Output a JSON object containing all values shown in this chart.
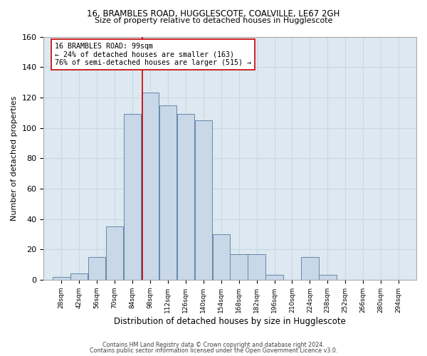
{
  "title1": "16, BRAMBLES ROAD, HUGGLESCOTE, COALVILLE, LE67 2GH",
  "title2": "Size of property relative to detached houses in Hugglescote",
  "xlabel": "Distribution of detached houses by size in Hugglescote",
  "ylabel": "Number of detached properties",
  "bin_edges": [
    28,
    42,
    56,
    70,
    84,
    98,
    112,
    126,
    140,
    154,
    168,
    182,
    196,
    210,
    224,
    238,
    252,
    266,
    280,
    294,
    308
  ],
  "bar_heights": [
    2,
    4,
    15,
    35,
    109,
    123,
    115,
    109,
    105,
    30,
    17,
    17,
    3,
    0,
    15,
    3,
    0,
    0,
    0,
    0
  ],
  "bar_color": "#c8d8e8",
  "bar_edge_color": "#6688aa",
  "vline_x": 99,
  "vline_color": "#cc0000",
  "annotation_line1": "16 BRAMBLES ROAD: 99sqm",
  "annotation_line2": "← 24% of detached houses are smaller (163)",
  "annotation_line3": "76% of semi-detached houses are larger (515) →",
  "annotation_box_color": "#ffffff",
  "annotation_box_edge_color": "#cc0000",
  "grid_color": "#c8d8e8",
  "background_color": "#dde8f0",
  "footer1": "Contains HM Land Registry data © Crown copyright and database right 2024.",
  "footer2": "Contains public sector information licensed under the Open Government Licence v3.0.",
  "ylim": [
    0,
    160
  ],
  "yticks": [
    0,
    20,
    40,
    60,
    80,
    100,
    120,
    140,
    160
  ]
}
